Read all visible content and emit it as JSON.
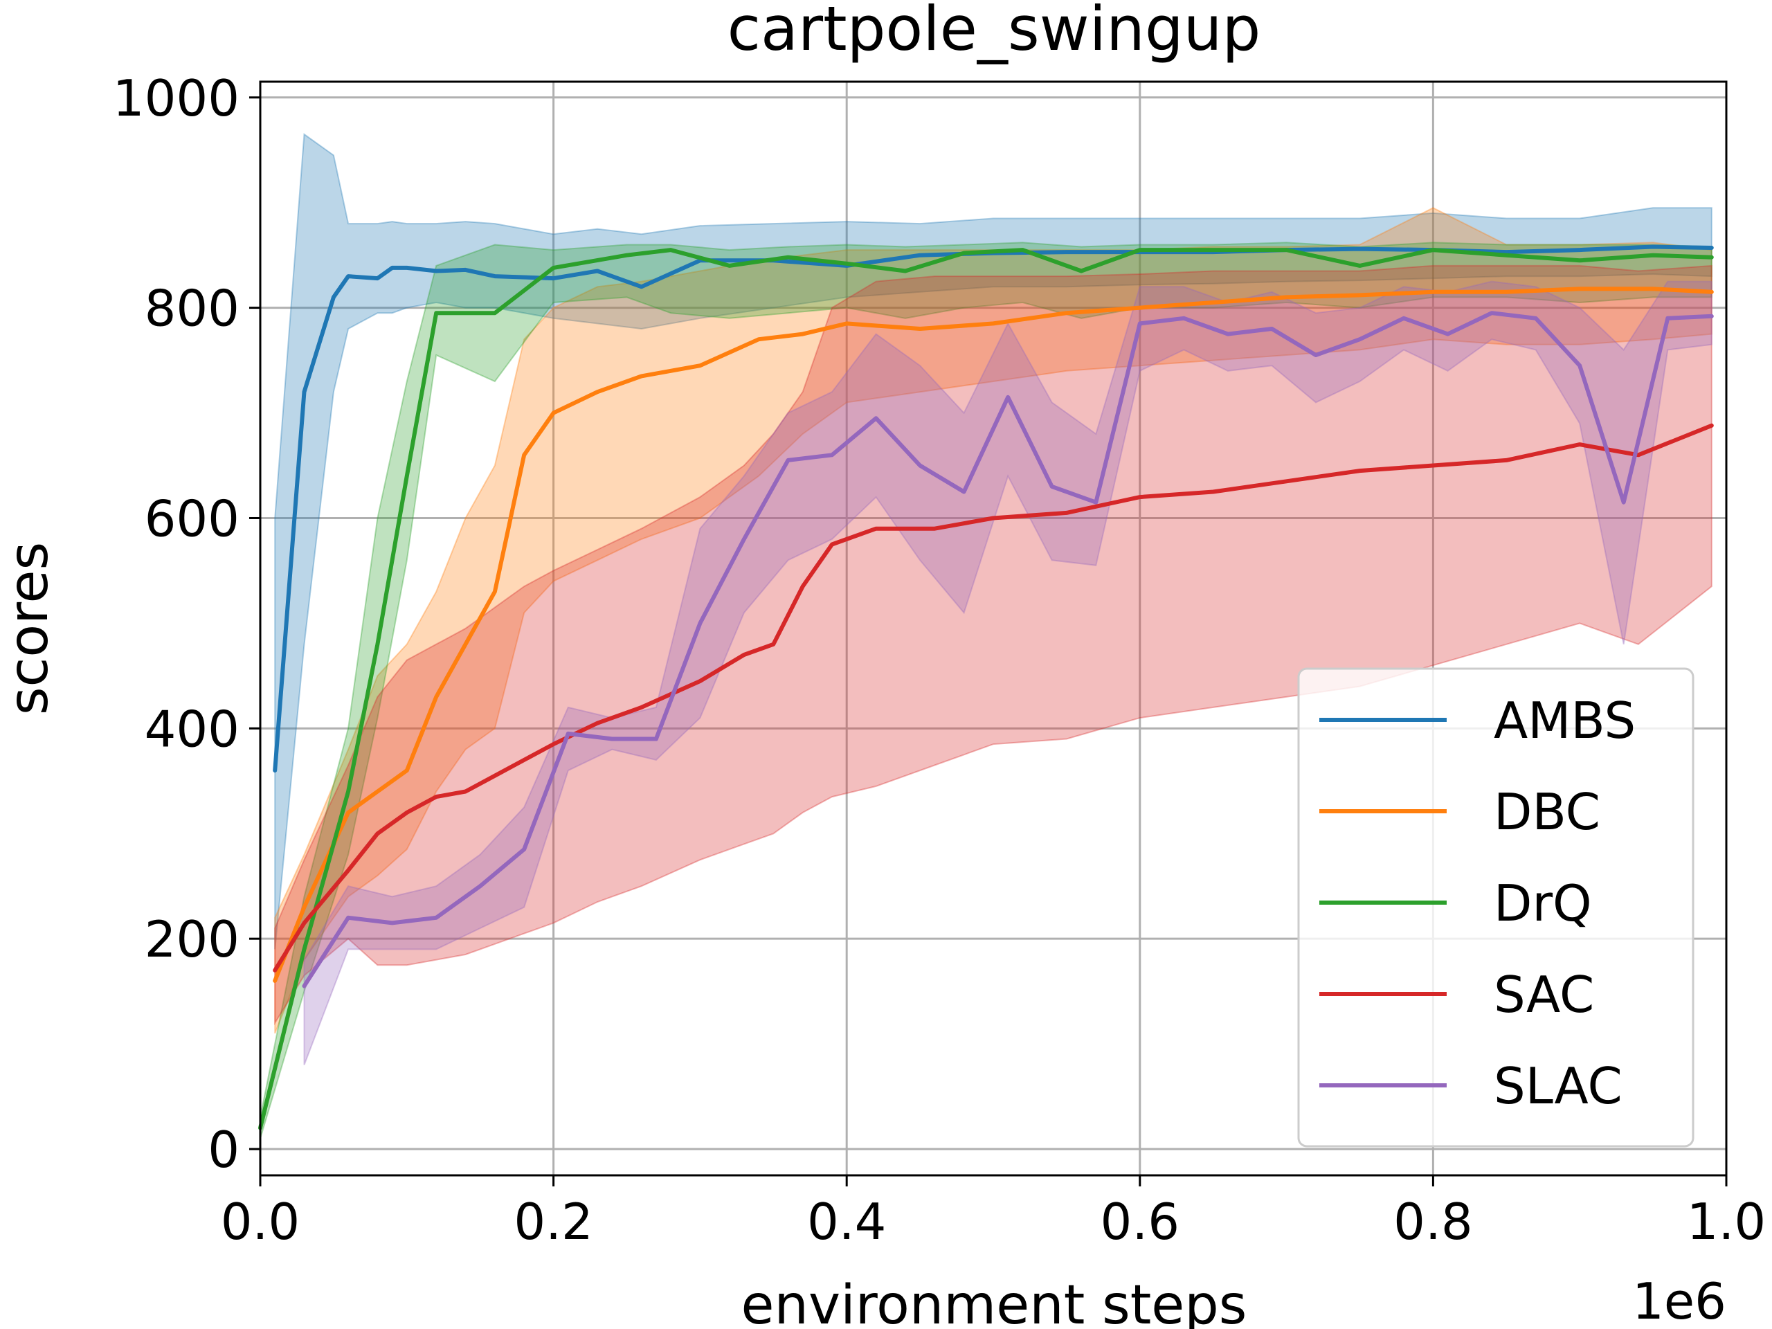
{
  "chart_data": {
    "type": "line",
    "title": "cartpole_swingup",
    "xlabel": "environment steps",
    "ylabel": "scores",
    "x_multiplier_label": "1e6",
    "xlim": [
      0,
      1.0
    ],
    "ylim": [
      -25,
      1015
    ],
    "xticks": [
      0.0,
      0.2,
      0.4,
      0.6,
      0.8,
      1.0
    ],
    "xtick_labels": [
      "0.0",
      "0.2",
      "0.4",
      "0.6",
      "0.8",
      "1.0"
    ],
    "yticks": [
      0,
      200,
      400,
      600,
      800,
      1000
    ],
    "ytick_labels": [
      "0",
      "200",
      "400",
      "600",
      "800",
      "1000"
    ],
    "grid": true,
    "legend_position": "lower-right",
    "series": [
      {
        "name": "AMBS",
        "color": "#1f77b4",
        "x": [
          0.01,
          0.03,
          0.05,
          0.06,
          0.08,
          0.09,
          0.1,
          0.12,
          0.14,
          0.16,
          0.2,
          0.23,
          0.26,
          0.3,
          0.35,
          0.4,
          0.45,
          0.5,
          0.55,
          0.6,
          0.65,
          0.7,
          0.75,
          0.8,
          0.85,
          0.9,
          0.95,
          0.99
        ],
        "values": [
          360,
          720,
          810,
          830,
          828,
          838,
          838,
          835,
          836,
          830,
          828,
          835,
          820,
          845,
          845,
          840,
          850,
          852,
          853,
          853,
          853,
          855,
          856,
          855,
          853,
          855,
          858,
          857
        ],
        "lower": [
          190,
          480,
          720,
          780,
          795,
          795,
          800,
          805,
          800,
          800,
          790,
          785,
          780,
          790,
          800,
          810,
          815,
          820,
          820,
          822,
          823,
          825,
          826,
          828,
          830,
          830,
          832,
          830
        ],
        "upper": [
          600,
          965,
          945,
          880,
          880,
          882,
          880,
          880,
          882,
          880,
          870,
          875,
          870,
          878,
          880,
          882,
          880,
          885,
          885,
          885,
          885,
          885,
          885,
          890,
          885,
          885,
          895,
          895
        ]
      },
      {
        "name": "DBC",
        "color": "#ff7f0e",
        "x": [
          0.01,
          0.03,
          0.06,
          0.08,
          0.1,
          0.12,
          0.14,
          0.16,
          0.18,
          0.2,
          0.23,
          0.26,
          0.3,
          0.34,
          0.37,
          0.4,
          0.45,
          0.5,
          0.55,
          0.6,
          0.65,
          0.7,
          0.75,
          0.8,
          0.85,
          0.9,
          0.95,
          0.99
        ],
        "values": [
          160,
          230,
          320,
          340,
          360,
          430,
          480,
          530,
          660,
          700,
          720,
          735,
          745,
          770,
          775,
          785,
          780,
          785,
          795,
          800,
          805,
          810,
          812,
          815,
          815,
          818,
          818,
          815
        ],
        "lower": [
          110,
          180,
          240,
          260,
          285,
          340,
          380,
          400,
          510,
          540,
          560,
          580,
          600,
          640,
          680,
          710,
          720,
          730,
          740,
          745,
          750,
          755,
          760,
          770,
          765,
          765,
          770,
          775
        ],
        "upper": [
          220,
          280,
          380,
          450,
          480,
          530,
          600,
          650,
          770,
          800,
          820,
          825,
          835,
          845,
          850,
          855,
          855,
          855,
          855,
          855,
          858,
          858,
          860,
          895,
          860,
          860,
          862,
          855
        ]
      },
      {
        "name": "DrQ",
        "color": "#2ca02c",
        "x": [
          0.0,
          0.03,
          0.06,
          0.08,
          0.1,
          0.12,
          0.16,
          0.2,
          0.25,
          0.28,
          0.32,
          0.36,
          0.4,
          0.44,
          0.48,
          0.52,
          0.56,
          0.6,
          0.65,
          0.7,
          0.75,
          0.8,
          0.85,
          0.9,
          0.95,
          0.99
        ],
        "values": [
          20,
          190,
          340,
          480,
          640,
          795,
          795,
          838,
          850,
          855,
          840,
          848,
          842,
          835,
          852,
          855,
          835,
          855,
          855,
          855,
          840,
          855,
          850,
          845,
          850,
          848
        ],
        "lower": [
          10,
          150,
          280,
          410,
          560,
          755,
          730,
          805,
          810,
          795,
          790,
          795,
          800,
          790,
          800,
          805,
          790,
          800,
          800,
          805,
          800,
          810,
          810,
          805,
          810,
          810
        ],
        "upper": [
          30,
          240,
          400,
          600,
          730,
          840,
          860,
          855,
          860,
          860,
          855,
          858,
          860,
          858,
          860,
          862,
          858,
          860,
          860,
          862,
          858,
          862,
          860,
          860,
          860,
          858
        ]
      },
      {
        "name": "SAC",
        "color": "#d62728",
        "x": [
          0.01,
          0.03,
          0.06,
          0.08,
          0.1,
          0.12,
          0.14,
          0.16,
          0.18,
          0.2,
          0.23,
          0.26,
          0.3,
          0.33,
          0.35,
          0.37,
          0.39,
          0.42,
          0.46,
          0.5,
          0.55,
          0.6,
          0.65,
          0.7,
          0.75,
          0.8,
          0.85,
          0.9,
          0.94,
          0.99
        ],
        "values": [
          170,
          215,
          265,
          300,
          320,
          335,
          340,
          355,
          370,
          385,
          405,
          420,
          445,
          470,
          480,
          535,
          575,
          590,
          590,
          600,
          605,
          620,
          625,
          635,
          645,
          650,
          655,
          670,
          660,
          688
        ],
        "lower": [
          120,
          165,
          200,
          175,
          175,
          180,
          185,
          195,
          205,
          215,
          235,
          250,
          275,
          290,
          300,
          320,
          335,
          345,
          365,
          385,
          390,
          410,
          420,
          430,
          440,
          460,
          480,
          500,
          480,
          535
        ],
        "upper": [
          210,
          275,
          365,
          430,
          465,
          480,
          495,
          515,
          535,
          550,
          570,
          590,
          620,
          650,
          680,
          720,
          800,
          825,
          830,
          830,
          830,
          832,
          835,
          835,
          835,
          840,
          840,
          840,
          835,
          840
        ]
      },
      {
        "name": "SLAC",
        "color": "#9467bd",
        "x": [
          0.03,
          0.06,
          0.09,
          0.12,
          0.15,
          0.18,
          0.21,
          0.24,
          0.27,
          0.3,
          0.33,
          0.36,
          0.39,
          0.42,
          0.45,
          0.48,
          0.51,
          0.54,
          0.57,
          0.6,
          0.63,
          0.66,
          0.69,
          0.72,
          0.75,
          0.78,
          0.81,
          0.84,
          0.87,
          0.9,
          0.93,
          0.96,
          0.99
        ],
        "values": [
          155,
          220,
          215,
          220,
          250,
          285,
          395,
          390,
          390,
          500,
          580,
          655,
          660,
          695,
          650,
          625,
          715,
          630,
          615,
          785,
          790,
          775,
          780,
          755,
          770,
          790,
          775,
          795,
          790,
          745,
          615,
          790,
          792
        ],
        "lower": [
          80,
          190,
          190,
          190,
          210,
          230,
          360,
          380,
          370,
          410,
          510,
          560,
          580,
          620,
          560,
          510,
          640,
          560,
          555,
          740,
          760,
          740,
          745,
          710,
          730,
          760,
          740,
          770,
          760,
          690,
          480,
          760,
          765
        ],
        "upper": [
          180,
          250,
          240,
          250,
          280,
          325,
          420,
          410,
          420,
          590,
          640,
          700,
          720,
          775,
          745,
          700,
          785,
          710,
          680,
          820,
          820,
          805,
          815,
          795,
          800,
          820,
          815,
          825,
          820,
          800,
          760,
          825,
          825
        ]
      }
    ]
  }
}
